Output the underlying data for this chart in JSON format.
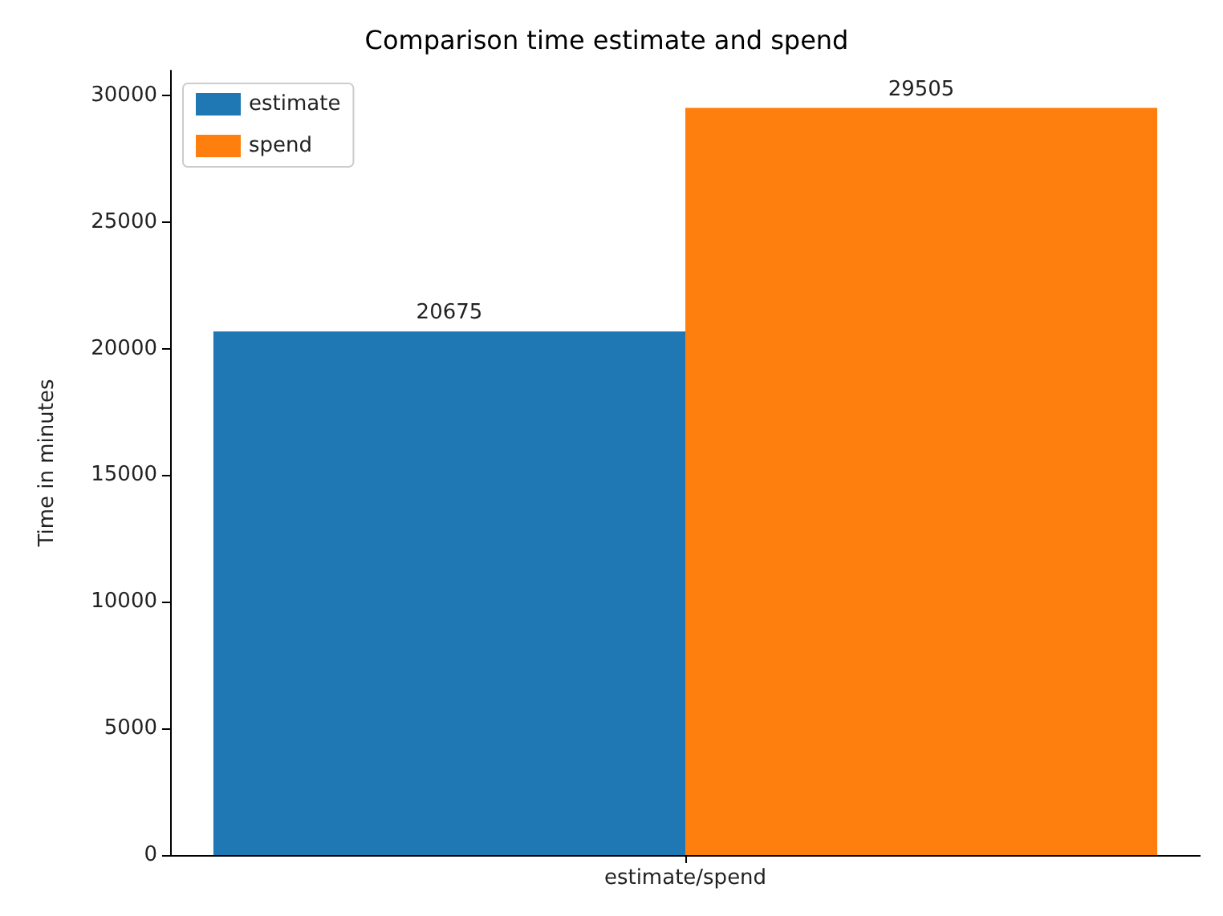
{
  "chart_data": {
    "type": "bar",
    "title": "Comparison time estimate and spend",
    "ylabel": "Time in minutes",
    "categories": [
      "estimate/spend"
    ],
    "series": [
      {
        "name": "estimate",
        "color": "#1f77b4",
        "values": [
          20675
        ]
      },
      {
        "name": "spend",
        "color": "#ff7f0e",
        "values": [
          29505
        ]
      }
    ],
    "ylim": [
      0,
      30980
    ],
    "yticks": [
      0,
      5000,
      10000,
      15000,
      20000,
      25000,
      30000
    ],
    "grid": false,
    "legend": "top left",
    "data_labels": true
  }
}
